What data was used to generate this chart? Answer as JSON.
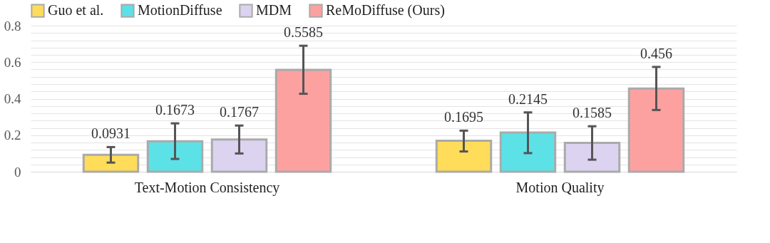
{
  "chart_data": {
    "type": "bar",
    "categories": [
      "Text-Motion Consistency",
      "Motion Quality"
    ],
    "series": [
      {
        "name": "Guo et al.",
        "color": "#ffdc5a",
        "values": [
          0.0931,
          0.1695
        ],
        "errors": [
          [
            0.05,
            0.135
          ],
          [
            0.111,
            0.225
          ]
        ]
      },
      {
        "name": "MotionDiffuse",
        "color": "#5ce1e6",
        "values": [
          0.1673,
          0.2145
        ],
        "errors": [
          [
            0.07,
            0.265
          ],
          [
            0.102,
            0.325
          ]
        ]
      },
      {
        "name": "MDM",
        "color": "#dcd3f0",
        "values": [
          0.1767,
          0.1585
        ],
        "errors": [
          [
            0.1,
            0.253
          ],
          [
            0.066,
            0.249
          ]
        ]
      },
      {
        "name": "ReMoDiffuse (Ours)",
        "color": "#fca1a0",
        "values": [
          0.5585,
          0.456
        ],
        "errors": [
          [
            0.427,
            0.69
          ],
          [
            0.338,
            0.574
          ]
        ]
      }
    ],
    "ylim": [
      0,
      0.8
    ],
    "yticks": [
      0,
      {
        "value": 0.04,
        "label": null
      },
      {
        "value": 0.08,
        "label": null
      },
      {
        "value": 0.12,
        "label": null
      },
      {
        "value": 0.16,
        "label": null
      },
      0.2,
      {
        "value": 0.24,
        "label": null
      },
      {
        "value": 0.28,
        "label": null
      },
      {
        "value": 0.32,
        "label": null
      },
      {
        "value": 0.36,
        "label": null
      },
      0.4,
      {
        "value": 0.44,
        "label": null
      },
      {
        "value": 0.48,
        "label": null
      },
      {
        "value": 0.52,
        "label": null
      },
      {
        "value": 0.56,
        "label": null
      },
      0.6,
      {
        "value": 0.64,
        "label": null
      },
      {
        "value": 0.68,
        "label": null
      },
      {
        "value": 0.72,
        "label": null
      },
      {
        "value": 0.76,
        "label": null
      },
      0.8
    ],
    "grid": true,
    "legend": "top",
    "data_labels": true
  }
}
